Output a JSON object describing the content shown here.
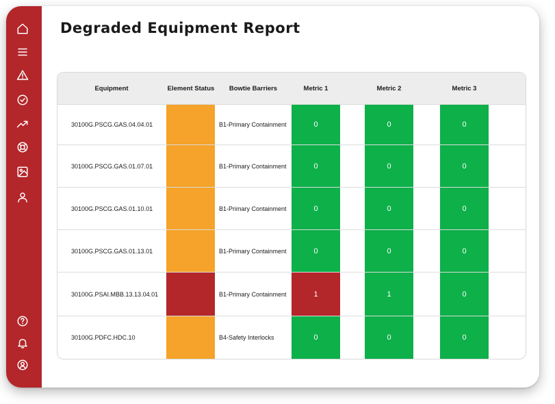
{
  "title": "Degraded Equipment Report",
  "colors": {
    "sidebar": "#b3262a",
    "amber": "#f5a32a",
    "red": "#b3262a",
    "green": "#0eb04a"
  },
  "sidebar": {
    "top_items": [
      {
        "icon": "home-icon"
      },
      {
        "icon": "menu-icon"
      },
      {
        "icon": "warning-icon"
      },
      {
        "icon": "check-circle-icon"
      },
      {
        "icon": "trending-up-icon"
      },
      {
        "icon": "life-buoy-icon"
      },
      {
        "icon": "image-icon"
      },
      {
        "icon": "user-icon"
      }
    ],
    "bottom_items": [
      {
        "icon": "help-icon"
      },
      {
        "icon": "bell-icon"
      },
      {
        "icon": "account-icon"
      }
    ]
  },
  "table": {
    "headers": {
      "equipment": "Equipment",
      "status": "Element Status",
      "barriers": "Bowtie Barriers",
      "metric1": "Metric 1",
      "metric2": "Metric 2",
      "metric3": "Metric 3"
    },
    "rows": [
      {
        "equipment": "30100G.PSCG.GAS.04.04.01",
        "status": "amber",
        "barrier": "B1-Primary Containment",
        "m1": "0",
        "m1_status": "green",
        "m2": "0",
        "m2_status": "green",
        "m3": "0",
        "m3_status": "green"
      },
      {
        "equipment": "30100G.PSCG.GAS.01.07.01",
        "status": "amber",
        "barrier": "B1-Primary Containment",
        "m1": "0",
        "m1_status": "green",
        "m2": "0",
        "m2_status": "green",
        "m3": "0",
        "m3_status": "green"
      },
      {
        "equipment": "30100G.PSCG.GAS.01.10.01",
        "status": "amber",
        "barrier": "B1-Primary Containment",
        "m1": "0",
        "m1_status": "green",
        "m2": "0",
        "m2_status": "green",
        "m3": "0",
        "m3_status": "green"
      },
      {
        "equipment": "30100G.PSCG.GAS.01.13.01",
        "status": "amber",
        "barrier": "B1-Primary Containment",
        "m1": "0",
        "m1_status": "green",
        "m2": "0",
        "m2_status": "green",
        "m3": "0",
        "m3_status": "green"
      },
      {
        "equipment": "30100G.PSAI.MBB.13.13.04.01",
        "status": "red",
        "barrier": "B1-Primary Containment",
        "m1": "1",
        "m1_status": "red",
        "m2": "1",
        "m2_status": "green",
        "m3": "0",
        "m3_status": "green"
      },
      {
        "equipment": "30100G.PDFC.HDC.10",
        "status": "amber",
        "barrier": "B4-Safety Interlocks",
        "m1": "0",
        "m1_status": "green",
        "m2": "0",
        "m2_status": "green",
        "m3": "0",
        "m3_status": "green"
      }
    ]
  }
}
